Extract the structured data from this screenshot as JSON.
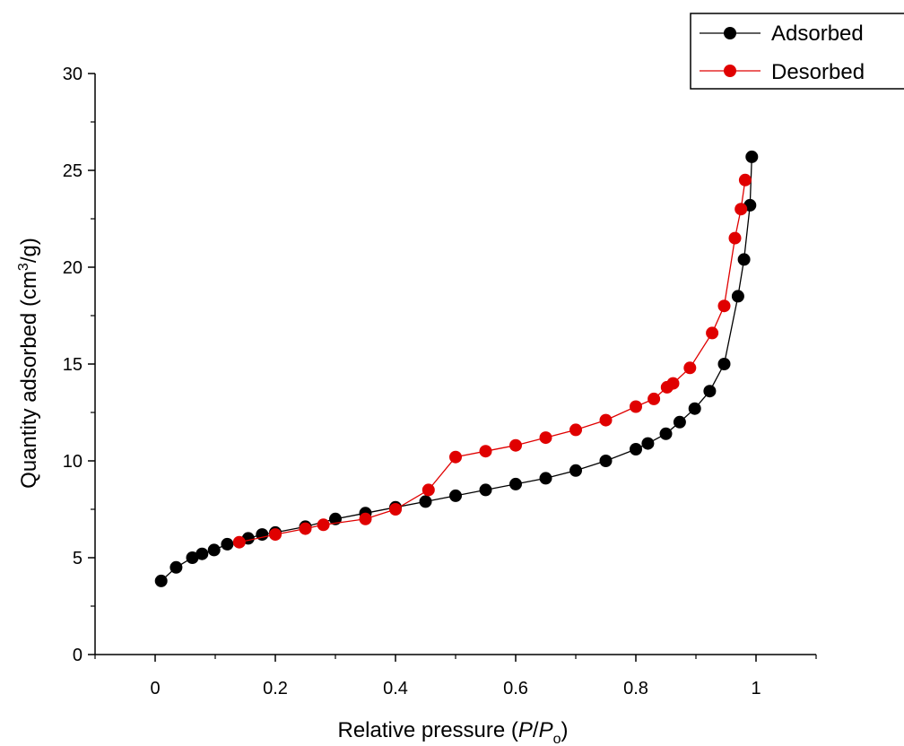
{
  "chart_data": {
    "type": "scatter",
    "xlabel_prefix": "Relative pressure (",
    "xlabel_italic_1": "P",
    "xlabel_slash": "/",
    "xlabel_italic_2": "P",
    "xlabel_sub": "o",
    "xlabel_suffix": ")",
    "ylabel_prefix": "Quantity adsorbed (cm",
    "ylabel_sup": "3",
    "ylabel_suffix": "/g)",
    "xlim": [
      -0.1,
      1.1
    ],
    "ylim": [
      0,
      30
    ],
    "x_ticks": [
      0,
      0.2,
      0.4,
      0.6,
      0.8,
      1
    ],
    "x_tick_labels": [
      "0",
      "0.2",
      "0.4",
      "0.6",
      "0.8",
      "1"
    ],
    "y_ticks": [
      0,
      5,
      10,
      15,
      20,
      25,
      30
    ],
    "y_tick_labels": [
      "0",
      "5",
      "10",
      "15",
      "20",
      "25",
      "30"
    ],
    "grid": false,
    "legend_position": "top-right",
    "series": [
      {
        "name": "Adsorbed",
        "color": "#000000",
        "x": [
          0.01,
          0.035,
          0.062,
          0.078,
          0.098,
          0.12,
          0.155,
          0.178,
          0.2,
          0.25,
          0.3,
          0.35,
          0.4,
          0.45,
          0.5,
          0.55,
          0.6,
          0.65,
          0.7,
          0.75,
          0.8,
          0.82,
          0.85,
          0.873,
          0.898,
          0.923,
          0.947,
          0.97,
          0.98,
          0.99,
          0.993
        ],
        "y": [
          3.8,
          4.5,
          5.0,
          5.2,
          5.4,
          5.7,
          6.0,
          6.2,
          6.3,
          6.6,
          7.0,
          7.3,
          7.6,
          7.9,
          8.2,
          8.5,
          8.8,
          9.1,
          9.5,
          10.0,
          10.6,
          10.9,
          11.4,
          12.0,
          12.7,
          13.6,
          15.0,
          18.5,
          20.4,
          23.2,
          25.7
        ]
      },
      {
        "name": "Desorbed",
        "color": "#e00000",
        "x": [
          0.14,
          0.2,
          0.25,
          0.28,
          0.35,
          0.4,
          0.455,
          0.5,
          0.55,
          0.6,
          0.65,
          0.7,
          0.75,
          0.8,
          0.83,
          0.852,
          0.862,
          0.89,
          0.927,
          0.947,
          0.965,
          0.975,
          0.982
        ],
        "y": [
          5.8,
          6.2,
          6.5,
          6.7,
          7.0,
          7.5,
          8.5,
          10.2,
          10.5,
          10.8,
          11.2,
          11.6,
          12.1,
          12.8,
          13.2,
          13.8,
          14.0,
          14.8,
          16.6,
          18.0,
          21.5,
          23.0,
          24.5
        ]
      }
    ]
  }
}
